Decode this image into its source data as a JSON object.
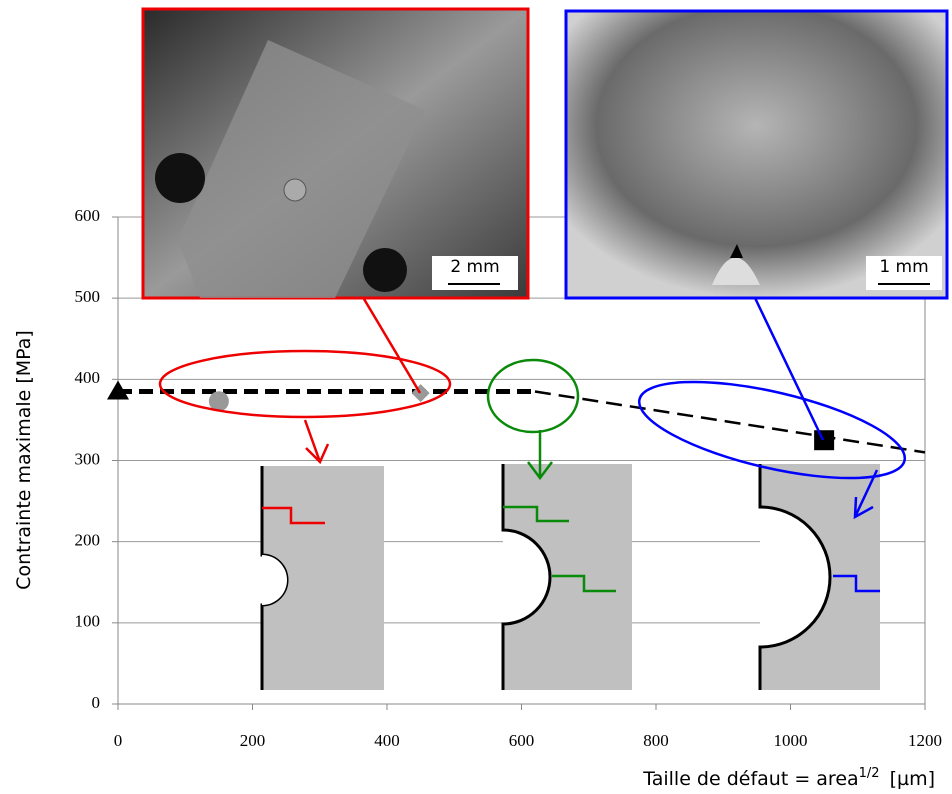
{
  "chart_data": {
    "type": "scatter",
    "y_label": "Contrainte maximale [MPa]",
    "x_label": {
      "text": "Taille de défaut = area",
      "sup": "1/2",
      "unit": "[µm]"
    },
    "xlim": [
      0,
      1200
    ],
    "ylim": [
      0,
      600
    ],
    "xticks": [
      0,
      200,
      400,
      600,
      800,
      1000,
      1200
    ],
    "yticks": [
      0,
      100,
      200,
      300,
      400,
      500,
      600
    ],
    "grid": true,
    "series": [
      {
        "x": [
          0
        ],
        "values": [
          385
        ],
        "marker": "triangle",
        "color": "#000000"
      },
      {
        "x": [
          150
        ],
        "values": [
          373
        ],
        "marker": "circle",
        "color": "#999999"
      },
      {
        "x": [
          450
        ],
        "values": [
          383
        ],
        "marker": "diamond",
        "color": "#999999"
      },
      {
        "x": [
          1050
        ],
        "values": [
          325
        ],
        "marker": "square",
        "color": "#000000"
      }
    ],
    "lines": [
      {
        "x": [
          0,
          620
        ],
        "values": [
          385,
          385
        ],
        "color": "#000000",
        "style": "bold"
      },
      {
        "x": [
          620,
          1200
        ],
        "values": [
          385,
          310
        ],
        "color": "#000000",
        "style": "thin"
      }
    ],
    "scale_bars": [
      "2 mm",
      "1 mm"
    ]
  }
}
